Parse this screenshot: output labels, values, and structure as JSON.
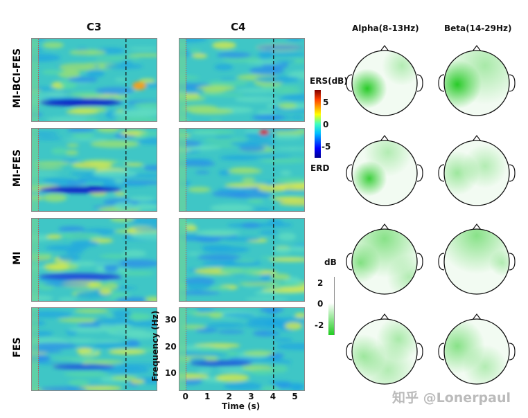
{
  "chart_data": {
    "type": "heatmap",
    "columns": [
      "C3",
      "C4"
    ],
    "rows": [
      "MI-BCI-FES",
      "MI-FES",
      "MI",
      "FES"
    ],
    "xlabel": "Time  (s)",
    "ylabel": "Frequency  (Hz)",
    "xticks": [
      "0",
      "1",
      "2",
      "3",
      "4",
      "5"
    ],
    "yticks": [
      "30",
      "20",
      "10"
    ],
    "xlim": [
      -0.3,
      5.4
    ],
    "ylim": [
      4,
      35
    ],
    "event_lines_s": [
      0,
      4
    ],
    "colorbar": {
      "title": "ERS(dB)",
      "bottom_label": "ERD",
      "ticks": [
        "5",
        "0",
        "-5"
      ],
      "range": [
        -8,
        8
      ],
      "colormap": "jet"
    },
    "topo": {
      "columns": [
        "Alpha(8-13Hz)",
        "Beta(14-29Hz)"
      ],
      "colorbar": {
        "title": "dB",
        "ticks": [
          "2",
          "0",
          "-2"
        ],
        "range": [
          -3,
          3
        ],
        "colormap": "white-green"
      }
    }
  },
  "watermark": "知乎 @Lonerpaul"
}
